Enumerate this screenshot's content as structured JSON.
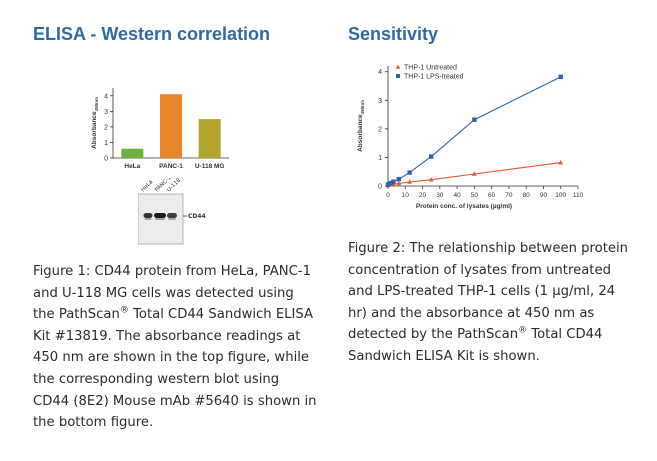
{
  "left": {
    "heading": "ELISA - Western correlation",
    "caption": {
      "part1": "Figure 1: CD44 protein from HeLa, PANC-1 and U-118 MG cells was detected using the PathScan",
      "reg": "®",
      "part2": " Total CD44 Sandwich ELISA Kit #13819. The absorbance readings at 450 nm are shown in the top figure, while the corresponding western blot using CD44 (8E2) Mouse mAb #5640 is shown in the bottom figure."
    },
    "blot": {
      "lane_labels": [
        "HeLa",
        "PANC-1",
        "U-118 MG"
      ],
      "band_label": "CD44",
      "band_intensity": [
        0.85,
        0.95,
        0.8
      ]
    }
  },
  "right": {
    "heading": "Sensitivity",
    "caption": {
      "part1": "Figure 2: The relationship between protein concentration of lysates from untreated and LPS-treated THP-1 cells (1 µg/ml, 24 hr) and the absorbance at 450 nm as detected by the PathScan",
      "reg": "®",
      "part2": " Total CD44 Sandwich ELISA Kit is shown."
    }
  },
  "chart_data": [
    {
      "type": "bar",
      "categories": [
        "HeLa",
        "PANC-1",
        "U-118 MG"
      ],
      "values": [
        0.6,
        4.1,
        2.5
      ],
      "colors": [
        "#6cb33f",
        "#e8862a",
        "#b2a42e"
      ],
      "ylabel": "Absorbance",
      "ylabel_sub": "450nm",
      "yticks": [
        0,
        1,
        2,
        3,
        4
      ],
      "ylim": [
        0,
        4.5
      ],
      "grid": false
    },
    {
      "type": "line",
      "xlabel": "Protein conc. of lysates (µg/ml)",
      "ylabel": "Absorbance",
      "ylabel_sub": "450nm",
      "xticks": [
        0,
        10,
        20,
        30,
        40,
        50,
        60,
        70,
        80,
        90,
        100,
        110
      ],
      "yticks": [
        0,
        1,
        2,
        3,
        4
      ],
      "xlim": [
        0,
        110
      ],
      "ylim": [
        0,
        4.2
      ],
      "legend_position": "top-left",
      "grid": false,
      "series": [
        {
          "name": "THP-1 Untreated",
          "color": "#e8552b",
          "marker": "triangle",
          "x": [
            0,
            1.5625,
            3.125,
            6.25,
            12.5,
            25,
            50,
            100
          ],
          "y": [
            0.02,
            0.04,
            0.06,
            0.09,
            0.14,
            0.22,
            0.42,
            0.82
          ]
        },
        {
          "name": "THP-1 LPS-treated",
          "color": "#2a62b0",
          "marker": "square",
          "x": [
            0,
            1.5625,
            3.125,
            6.25,
            12.5,
            25,
            50,
            100
          ],
          "y": [
            0.05,
            0.1,
            0.15,
            0.24,
            0.47,
            1.03,
            2.32,
            3.82
          ]
        }
      ]
    }
  ]
}
